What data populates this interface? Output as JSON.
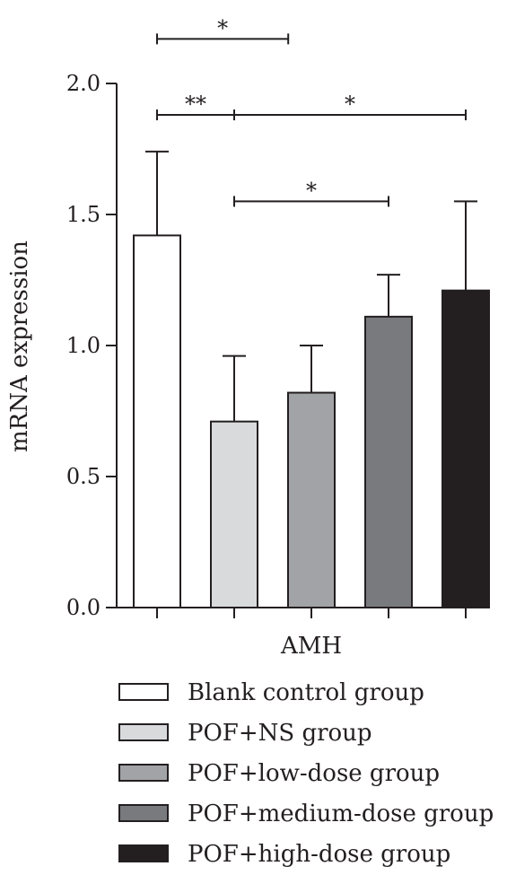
{
  "chart_data": {
    "type": "bar",
    "category": "AMH",
    "ylabel": "mRNA expression",
    "ylim": [
      0,
      2.0
    ],
    "yticks": [
      "0.0",
      "0.5",
      "1.0",
      "1.5",
      "2.0"
    ],
    "series": [
      {
        "name": "Blank control group",
        "value": 1.42,
        "error": 0.32,
        "color": "#ffffff"
      },
      {
        "name": "POF+NS group",
        "value": 0.71,
        "error": 0.25,
        "color": "#d9dadc"
      },
      {
        "name": "POF+low-dose group",
        "value": 0.82,
        "error": 0.18,
        "color": "#a2a3a6"
      },
      {
        "name": "POF+medium-dose group",
        "value": 1.11,
        "error": 0.16,
        "color": "#797a7d"
      },
      {
        "name": "POF+high-dose group",
        "value": 1.21,
        "error": 0.34,
        "color": "#231f20"
      }
    ],
    "significance": [
      {
        "from": 0,
        "to": 1,
        "label": "**",
        "y": 1.88
      },
      {
        "from": 1,
        "to": 4,
        "label": "*",
        "y": 1.88
      },
      {
        "from": 1,
        "to": 3,
        "label": "*",
        "y": 1.55
      },
      {
        "from": 0,
        "to": 1.7,
        "label": "*",
        "y": 2.17
      }
    ]
  }
}
